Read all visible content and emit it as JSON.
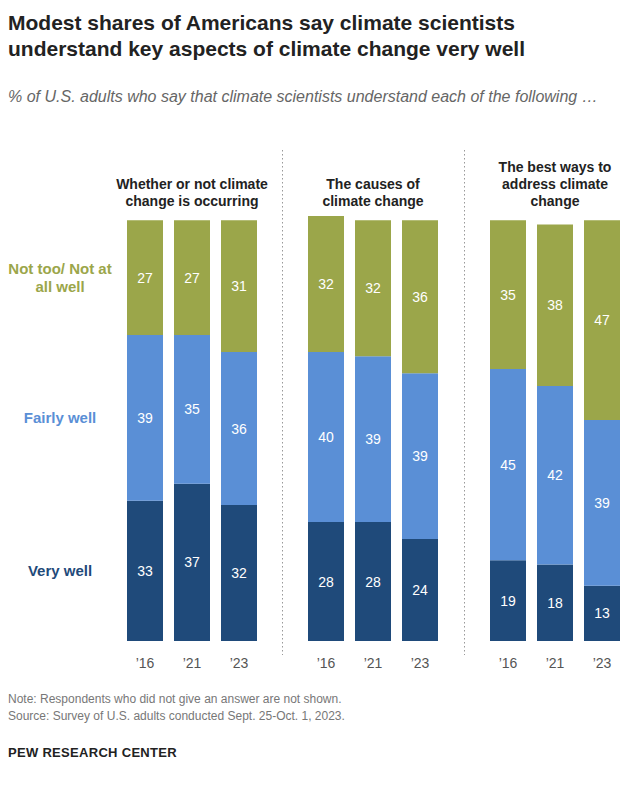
{
  "header": {
    "title": "Modest shares of Americans say climate scientists understand key aspects of climate change very well",
    "subtitle": "% of U.S. adults who say that climate scientists understand each of the following …"
  },
  "footer": {
    "note": "Note: Respondents who did not give an answer are not shown.",
    "source": "Source: Survey of U.S. adults conducted Sept. 25-Oct. 1, 2023.",
    "brand": "PEW RESEARCH CENTER"
  },
  "chart_data": [
    {
      "type": "bar",
      "title": "Whether or not climate change is occurring",
      "stacked": true,
      "data_labels": true,
      "tick_labels": "x",
      "categories": [
        "’16",
        "’21",
        "’23"
      ],
      "ylim": [
        0,
        100
      ],
      "series": [
        {
          "name": "Very well",
          "color": "#1f4a7a",
          "values": [
            33,
            37,
            32
          ]
        },
        {
          "name": "Fairly well",
          "color": "#5a8fd6",
          "values": [
            39,
            35,
            36
          ]
        },
        {
          "name": "Not too/ Not at all well",
          "color": "#9ba64a",
          "values": [
            27,
            27,
            31
          ]
        }
      ]
    },
    {
      "type": "bar",
      "title": "The causes of climate change",
      "stacked": true,
      "data_labels": true,
      "tick_labels": "x",
      "categories": [
        "’16",
        "’21",
        "’23"
      ],
      "ylim": [
        0,
        100
      ],
      "series": [
        {
          "color": "#1f4a7a",
          "values": [
            28,
            28,
            24
          ]
        },
        {
          "color": "#5a8fd6",
          "values": [
            40,
            39,
            39
          ]
        },
        {
          "color": "#9ba64a",
          "values": [
            32,
            32,
            36
          ]
        }
      ]
    },
    {
      "type": "bar",
      "title": "The best ways to address climate change",
      "stacked": true,
      "data_labels": true,
      "tick_labels": "x",
      "categories": [
        "’16",
        "’21",
        "’23"
      ],
      "ylim": [
        0,
        100
      ],
      "series": [
        {
          "color": "#1f4a7a",
          "values": [
            19,
            18,
            13
          ]
        },
        {
          "color": "#5a8fd6",
          "values": [
            45,
            42,
            39
          ]
        },
        {
          "color": "#9ba64a",
          "values": [
            35,
            38,
            47
          ]
        }
      ]
    }
  ]
}
